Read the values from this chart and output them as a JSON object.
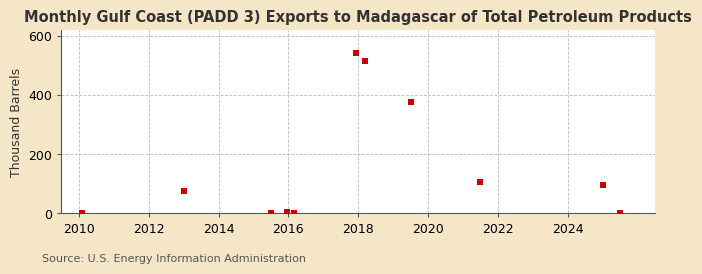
{
  "title": "Monthly Gulf Coast (PADD 3) Exports to Madagascar of Total Petroleum Products",
  "ylabel": "Thousand Barrels",
  "source": "Source: U.S. Energy Information Administration",
  "figure_bg_color": "#f5e6c8",
  "plot_bg_color": "#ffffff",
  "grid_color": "#bbbbbb",
  "marker_color": "#cc0000",
  "data_points": [
    [
      2010.1,
      2
    ],
    [
      2013.0,
      76
    ],
    [
      2015.5,
      2
    ],
    [
      2015.95,
      4
    ],
    [
      2016.15,
      2
    ],
    [
      2017.95,
      540
    ],
    [
      2018.2,
      515
    ],
    [
      2019.5,
      375
    ],
    [
      2021.5,
      105
    ],
    [
      2025.0,
      95
    ],
    [
      2025.5,
      2
    ]
  ],
  "xlim": [
    2009.5,
    2026.5
  ],
  "ylim": [
    0,
    620
  ],
  "xticks": [
    2010,
    2012,
    2014,
    2016,
    2018,
    2020,
    2022,
    2024
  ],
  "yticks": [
    0,
    200,
    400,
    600
  ],
  "title_fontsize": 10.5,
  "axis_fontsize": 9,
  "source_fontsize": 8
}
